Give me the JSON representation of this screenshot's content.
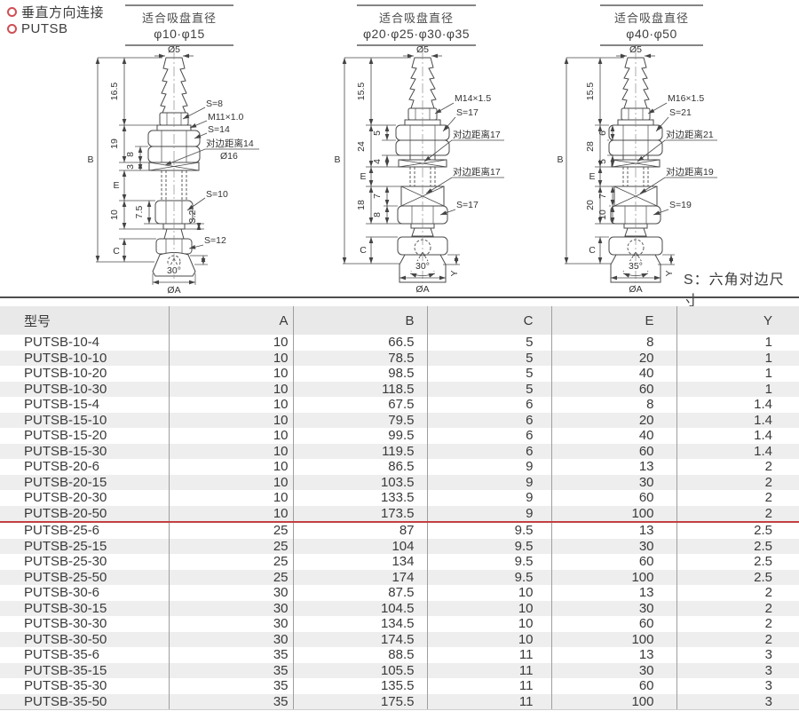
{
  "colors": {
    "accent_red": "#c23f41",
    "bullet_red": "#ce4f55",
    "table_header_bg": "#e9e9e9",
    "stripe_bg": "#eeeeee"
  },
  "page": {
    "bullet1": "垂直方向连接",
    "bullet2": "PUTSB",
    "note": "S：六角对边尺寸"
  },
  "diagrams": [
    {
      "header1": "适合吸盘直径",
      "header2": "φ10·φ15",
      "top": "Ø5",
      "b": "B",
      "s1": "16.5",
      "s2": "19",
      "e": "E",
      "s4": "10",
      "c": "C",
      "i1": "8",
      "i2": "3",
      "i3": "7.5",
      "r1": "S=8",
      "r2": "M11×1.0",
      "r3": "S=14",
      "r4": "对边距离14",
      "r4b": "Ø16",
      "r5": "S=10",
      "r6": "3.2",
      "r7": "S=12",
      "angle": "30°",
      "dia": "ØA"
    },
    {
      "header1": "适合吸盘直径",
      "header2": "φ20·φ25·φ30·φ35",
      "top": "Ø5",
      "b": "B",
      "s1": "15.5",
      "s2": "24",
      "e": "E",
      "s4": "18",
      "c": "C",
      "i1": "5",
      "i2": "4",
      "i3": "7",
      "i4": "8",
      "r1": "M14×1.5",
      "r2": "S=17",
      "r3": "对边距离17",
      "r4": "对边距离17",
      "r5": "S=17",
      "angle": "30°",
      "dia": "ØA",
      "y": "Y"
    },
    {
      "header1": "适合吸盘直径",
      "header2": "φ40·φ50",
      "top": "Ø5",
      "b": "B",
      "s1": "15.5",
      "s2": "28",
      "e": "E",
      "s4": "20",
      "c": "C",
      "i1": "6",
      "i2": "5",
      "i3": "7",
      "i4": "10",
      "r1": "M16×1.5",
      "r2": "S=21",
      "r3": "对边距离21",
      "r4": "对边距离19",
      "r5": "S=19",
      "angle": "35°",
      "dia": "ØA",
      "y": "Y"
    }
  ],
  "table": {
    "columns": [
      "型号",
      "A",
      "B",
      "C",
      "E",
      "Y"
    ],
    "rows": [
      [
        "PUTSB-10-4",
        "10",
        "66.5",
        "5",
        "8",
        "1"
      ],
      [
        "PUTSB-10-10",
        "10",
        "78.5",
        "5",
        "20",
        "1"
      ],
      [
        "PUTSB-10-20",
        "10",
        "98.5",
        "5",
        "40",
        "1"
      ],
      [
        "PUTSB-10-30",
        "10",
        "118.5",
        "5",
        "60",
        "1"
      ],
      [
        "PUTSB-15-4",
        "10",
        "67.5",
        "6",
        "8",
        "1.4"
      ],
      [
        "PUTSB-15-10",
        "10",
        "79.5",
        "6",
        "20",
        "1.4"
      ],
      [
        "PUTSB-15-20",
        "10",
        "99.5",
        "6",
        "40",
        "1.4"
      ],
      [
        "PUTSB-15-30",
        "10",
        "119.5",
        "6",
        "60",
        "1.4"
      ],
      [
        "PUTSB-20-6",
        "10",
        "86.5",
        "9",
        "13",
        "2"
      ],
      [
        "PUTSB-20-15",
        "10",
        "103.5",
        "9",
        "30",
        "2"
      ],
      [
        "PUTSB-20-30",
        "10",
        "133.5",
        "9",
        "60",
        "2"
      ],
      [
        "PUTSB-20-50",
        "10",
        "173.5",
        "9",
        "100",
        "2"
      ],
      [
        "PUTSB-25-6",
        "25",
        "87",
        "9.5",
        "13",
        "2.5"
      ],
      [
        "PUTSB-25-15",
        "25",
        "104",
        "9.5",
        "30",
        "2.5"
      ],
      [
        "PUTSB-25-30",
        "25",
        "134",
        "9.5",
        "60",
        "2.5"
      ],
      [
        "PUTSB-25-50",
        "25",
        "174",
        "9.5",
        "100",
        "2.5"
      ],
      [
        "PUTSB-30-6",
        "30",
        "87.5",
        "10",
        "13",
        "2"
      ],
      [
        "PUTSB-30-15",
        "30",
        "104.5",
        "10",
        "30",
        "2"
      ],
      [
        "PUTSB-30-30",
        "30",
        "134.5",
        "10",
        "60",
        "2"
      ],
      [
        "PUTSB-30-50",
        "30",
        "174.5",
        "10",
        "100",
        "2"
      ],
      [
        "PUTSB-35-6",
        "35",
        "88.5",
        "11",
        "13",
        "3"
      ],
      [
        "PUTSB-35-15",
        "35",
        "105.5",
        "11",
        "30",
        "3"
      ],
      [
        "PUTSB-35-30",
        "35",
        "135.5",
        "11",
        "60",
        "3"
      ],
      [
        "PUTSB-35-50",
        "35",
        "175.5",
        "11",
        "100",
        "3"
      ]
    ]
  }
}
